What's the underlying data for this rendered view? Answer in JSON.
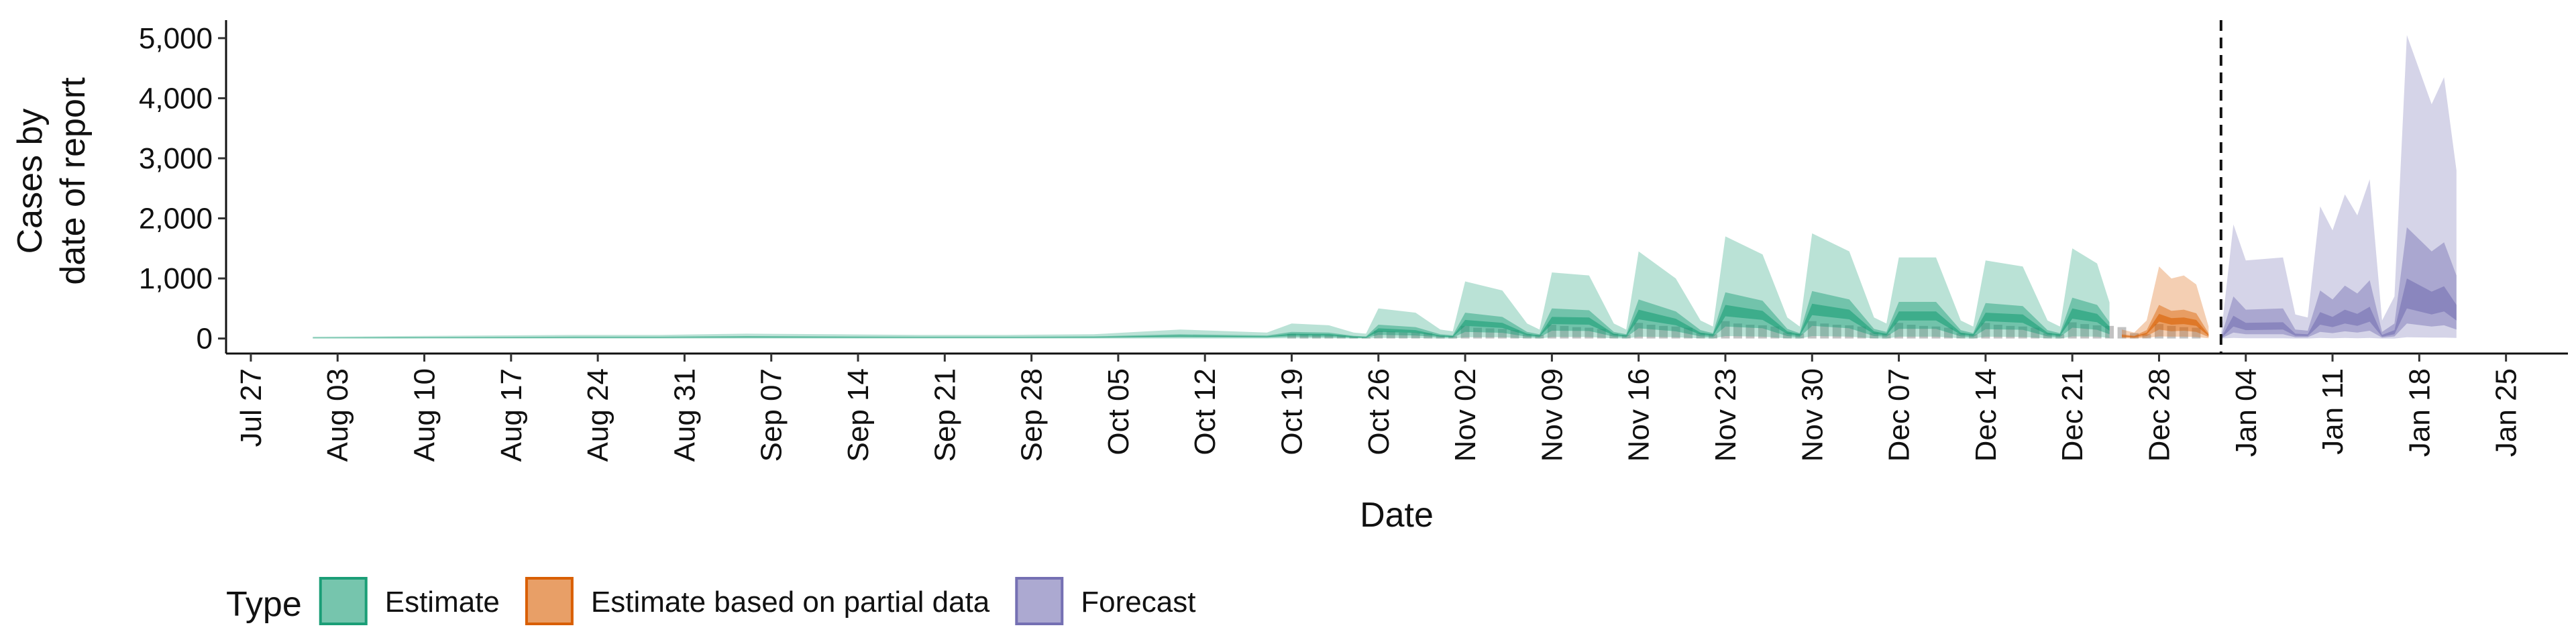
{
  "chart_data": {
    "type": "interval-area",
    "ylabel": [
      "Cases by",
      "date of report"
    ],
    "xlabel": "Date",
    "legend_title": "Type",
    "legend": "bottom",
    "xlim": [
      "Jul 25",
      "Jan 30"
    ],
    "xticks": [
      "Jul 27",
      "Aug 03",
      "Aug 10",
      "Aug 17",
      "Aug 24",
      "Aug 31",
      "Sep 07",
      "Sep 14",
      "Sep 21",
      "Sep 28",
      "Oct 05",
      "Oct 12",
      "Oct 19",
      "Oct 26",
      "Nov 02",
      "Nov 09",
      "Nov 16",
      "Nov 23",
      "Nov 30",
      "Dec 07",
      "Dec 14",
      "Dec 21",
      "Dec 28",
      "Jan 04",
      "Jan 11",
      "Jan 18",
      "Jan 25"
    ],
    "ylim": [
      -250,
      5300
    ],
    "yticks": [
      0,
      {
        "value": 1000,
        "label": "1,000"
      },
      {
        "value": 2000,
        "label": "2,000"
      },
      {
        "value": 3000,
        "label": "3,000"
      },
      {
        "value": 4000,
        "label": "4,000"
      },
      {
        "value": 5000,
        "label": "5,000"
      }
    ],
    "vline": "Jan 02",
    "bars": {
      "color": "#9a9a9a",
      "x": [
        "Oct 19",
        "Oct 20",
        "Oct 21",
        "Oct 22",
        "Oct 23",
        "Oct 24",
        "Oct 25",
        "Oct 26",
        "Oct 27",
        "Oct 28",
        "Oct 29",
        "Oct 30",
        "Oct 31",
        "Nov 01",
        "Nov 02",
        "Nov 03",
        "Nov 04",
        "Nov 05",
        "Nov 06",
        "Nov 07",
        "Nov 08",
        "Nov 09",
        "Nov 10",
        "Nov 11",
        "Nov 12",
        "Nov 13",
        "Nov 14",
        "Nov 15",
        "Nov 16",
        "Nov 17",
        "Nov 18",
        "Nov 19",
        "Nov 20",
        "Nov 21",
        "Nov 22",
        "Nov 23",
        "Nov 24",
        "Nov 25",
        "Nov 26",
        "Nov 27",
        "Nov 28",
        "Nov 29",
        "Nov 30",
        "Dec 01",
        "Dec 02",
        "Dec 03",
        "Dec 04",
        "Dec 05",
        "Dec 06",
        "Dec 07",
        "Dec 08",
        "Dec 09",
        "Dec 10",
        "Dec 11",
        "Dec 12",
        "Dec 13",
        "Dec 14",
        "Dec 15",
        "Dec 16",
        "Dec 17",
        "Dec 18",
        "Dec 19",
        "Dec 20",
        "Dec 21",
        "Dec 22",
        "Dec 23",
        "Dec 24",
        "Dec 25",
        "Dec 26",
        "Dec 27",
        "Dec 28",
        "Dec 29",
        "Dec 30",
        "Dec 31"
      ],
      "values": [
        80,
        70,
        60,
        60,
        50,
        30,
        20,
        130,
        120,
        100,
        100,
        90,
        50,
        40,
        210,
        180,
        170,
        160,
        140,
        70,
        60,
        230,
        210,
        190,
        180,
        160,
        80,
        60,
        260,
        230,
        210,
        200,
        180,
        90,
        70,
        290,
        250,
        230,
        220,
        200,
        100,
        80,
        290,
        250,
        230,
        220,
        200,
        100,
        80,
        260,
        230,
        210,
        200,
        180,
        90,
        70,
        260,
        230,
        210,
        200,
        180,
        90,
        70,
        270,
        240,
        220,
        210,
        190,
        90,
        70,
        240,
        210,
        190,
        180
      ]
    },
    "series": [
      {
        "name": "Estimate",
        "color": "#1b9e77",
        "x": [
          "Aug 01",
          "Aug 08",
          "Aug 15",
          "Aug 22",
          "Aug 29",
          "Sep 05",
          "Sep 12",
          "Sep 19",
          "Sep 26",
          "Oct 03",
          "Oct 10",
          "Oct 17",
          "Oct 19",
          "Oct 22",
          "Oct 24",
          "Oct 25",
          "Oct 26",
          "Oct 29",
          "Oct 31",
          "Nov 01",
          "Nov 02",
          "Nov 05",
          "Nov 07",
          "Nov 08",
          "Nov 09",
          "Nov 12",
          "Nov 14",
          "Nov 15",
          "Nov 16",
          "Nov 19",
          "Nov 21",
          "Nov 22",
          "Nov 23",
          "Nov 26",
          "Nov 28",
          "Nov 29",
          "Nov 30",
          "Dec 03",
          "Dec 05",
          "Dec 06",
          "Dec 07",
          "Dec 10",
          "Dec 12",
          "Dec 13",
          "Dec 14",
          "Dec 17",
          "Dec 19",
          "Dec 20",
          "Dec 21",
          "Dec 23",
          "Dec 24"
        ],
        "upper_90": [
          30,
          40,
          50,
          60,
          60,
          80,
          70,
          60,
          60,
          70,
          150,
          100,
          250,
          220,
          100,
          80,
          500,
          430,
          150,
          120,
          950,
          800,
          250,
          150,
          1100,
          1050,
          250,
          150,
          1450,
          1000,
          300,
          200,
          1700,
          1400,
          350,
          200,
          1750,
          1450,
          350,
          250,
          1350,
          1350,
          300,
          200,
          1300,
          1200,
          300,
          200,
          1500,
          1250,
          600
        ],
        "lower_90": [
          0,
          0,
          0,
          0,
          0,
          0,
          0,
          0,
          0,
          0,
          0,
          0,
          5,
          5,
          0,
          0,
          10,
          10,
          0,
          0,
          20,
          20,
          5,
          0,
          25,
          25,
          5,
          0,
          30,
          20,
          5,
          0,
          40,
          30,
          5,
          0,
          40,
          30,
          5,
          0,
          30,
          30,
          5,
          0,
          30,
          25,
          5,
          0,
          35,
          30,
          10
        ],
        "upper_50": [
          15,
          20,
          25,
          30,
          30,
          40,
          35,
          30,
          30,
          35,
          70,
          50,
          110,
          100,
          45,
          35,
          230,
          190,
          70,
          55,
          430,
          360,
          110,
          70,
          500,
          470,
          110,
          70,
          650,
          450,
          140,
          90,
          770,
          630,
          160,
          90,
          790,
          650,
          160,
          110,
          610,
          610,
          140,
          90,
          590,
          540,
          140,
          90,
          680,
          560,
          270
        ],
        "lower_50": [
          5,
          6,
          8,
          10,
          10,
          12,
          10,
          10,
          10,
          10,
          20,
          15,
          30,
          25,
          10,
          10,
          60,
          50,
          20,
          15,
          110,
          95,
          30,
          20,
          130,
          125,
          30,
          20,
          170,
          120,
          35,
          25,
          200,
          170,
          40,
          25,
          210,
          170,
          40,
          30,
          160,
          160,
          35,
          25,
          155,
          145,
          35,
          25,
          180,
          145,
          70
        ],
        "upper_20": [
          10,
          15,
          18,
          20,
          20,
          30,
          25,
          20,
          20,
          25,
          50,
          35,
          80,
          75,
          35,
          25,
          170,
          140,
          50,
          40,
          310,
          260,
          80,
          50,
          360,
          350,
          80,
          50,
          480,
          330,
          100,
          70,
          560,
          460,
          120,
          70,
          580,
          480,
          120,
          80,
          450,
          450,
          100,
          70,
          430,
          400,
          100,
          70,
          500,
          410,
          200
        ],
        "lower_20": [
          8,
          10,
          12,
          15,
          15,
          20,
          18,
          15,
          15,
          18,
          35,
          25,
          55,
          50,
          20,
          15,
          110,
          95,
          35,
          25,
          210,
          175,
          55,
          35,
          240,
          230,
          55,
          35,
          320,
          220,
          65,
          45,
          370,
          310,
          75,
          45,
          390,
          320,
          75,
          55,
          300,
          300,
          65,
          45,
          290,
          260,
          65,
          45,
          330,
          270,
          130
        ]
      },
      {
        "name": "Estimate based on partial data",
        "color": "#d95f02",
        "x": [
          "Dec 25",
          "Dec 26",
          "Dec 27",
          "Dec 28",
          "Dec 29",
          "Dec 30",
          "Dec 31",
          "Jan 01"
        ],
        "upper_90": [
          150,
          100,
          300,
          1200,
          1000,
          1050,
          900,
          200
        ],
        "lower_90": [
          5,
          0,
          10,
          35,
          30,
          30,
          25,
          5
        ],
        "upper_50": [
          70,
          45,
          140,
          560,
          460,
          480,
          420,
          90
        ],
        "lower_50": [
          20,
          12,
          40,
          150,
          120,
          130,
          110,
          25
        ],
        "upper_20": [
          50,
          35,
          100,
          410,
          340,
          350,
          310,
          65
        ],
        "lower_20": [
          35,
          25,
          70,
          280,
          230,
          240,
          210,
          45
        ]
      },
      {
        "name": "Forecast",
        "color": "#7570b3",
        "x": [
          "Jan 02",
          "Jan 03",
          "Jan 04",
          "Jan 07",
          "Jan 08",
          "Jan 09",
          "Jan 10",
          "Jan 11",
          "Jan 12",
          "Jan 13",
          "Jan 14",
          "Jan 15",
          "Jan 16",
          "Jan 17",
          "Jan 19",
          "Jan 20",
          "Jan 21"
        ],
        "upper_90": [
          50,
          1900,
          1300,
          1350,
          400,
          350,
          2200,
          1800,
          2400,
          2050,
          2650,
          300,
          700,
          5050,
          3900,
          4350,
          2800
        ],
        "lower_90": [
          0,
          10,
          5,
          5,
          0,
          0,
          10,
          5,
          10,
          5,
          10,
          0,
          0,
          20,
          15,
          15,
          10
        ],
        "upper_50": [
          20,
          700,
          480,
          500,
          150,
          130,
          800,
          650,
          880,
          750,
          970,
          110,
          250,
          1850,
          1450,
          1600,
          1050
        ],
        "lower_50": [
          0,
          100,
          70,
          70,
          20,
          20,
          110,
          90,
          120,
          100,
          130,
          15,
          35,
          250,
          200,
          220,
          150
        ],
        "upper_20": [
          10,
          380,
          260,
          270,
          80,
          70,
          440,
          360,
          480,
          410,
          530,
          60,
          140,
          1000,
          780,
          870,
          560
        ],
        "lower_20": [
          5,
          200,
          140,
          150,
          45,
          40,
          230,
          190,
          250,
          210,
          280,
          30,
          70,
          500,
          400,
          450,
          300
        ]
      }
    ]
  }
}
